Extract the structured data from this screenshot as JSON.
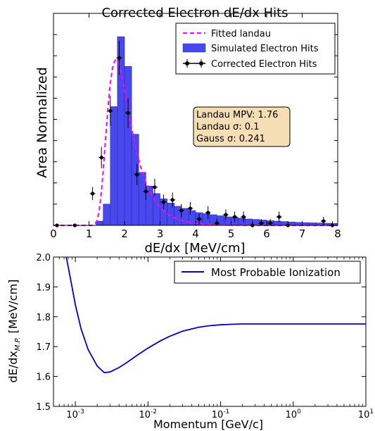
{
  "chart_data": [
    {
      "type": "bar",
      "title": "Corrected Electron dE/dx Hits",
      "xlabel": "dE/dx [MeV/cm]",
      "ylabel": "Area Normalized",
      "xlim": [
        0,
        8
      ],
      "xticks": [
        "0",
        "1",
        "2",
        "3",
        "4",
        "5",
        "6",
        "7",
        "8"
      ],
      "ylim": [
        0,
        1.0
      ],
      "y_tick_labels_shown": false,
      "grid": false,
      "legend": {
        "placement": "top-right",
        "entries": [
          "Fitted landau",
          "Simulated Electron Hits",
          "Corrected Electron Hits"
        ]
      },
      "series": [
        {
          "name": "Simulated Electron Hits",
          "kind": "histogram",
          "color": "#4848f0",
          "bin_width": 0.2,
          "bins": [
            {
              "x": 1.2,
              "value": 0.02
            },
            {
              "x": 1.4,
              "value": 0.1
            },
            {
              "x": 1.6,
              "value": 0.56
            },
            {
              "x": 1.8,
              "value": 0.89
            },
            {
              "x": 2.0,
              "value": 0.75
            },
            {
              "x": 2.2,
              "value": 0.43
            },
            {
              "x": 2.4,
              "value": 0.25
            },
            {
              "x": 2.6,
              "value": 0.185
            },
            {
              "x": 2.8,
              "value": 0.15
            },
            {
              "x": 3.0,
              "value": 0.125
            },
            {
              "x": 3.2,
              "value": 0.105
            },
            {
              "x": 3.4,
              "value": 0.09
            },
            {
              "x": 3.6,
              "value": 0.08
            },
            {
              "x": 3.8,
              "value": 0.07
            },
            {
              "x": 4.0,
              "value": 0.06
            },
            {
              "x": 4.2,
              "value": 0.055
            },
            {
              "x": 4.4,
              "value": 0.05
            },
            {
              "x": 4.6,
              "value": 0.045
            },
            {
              "x": 4.8,
              "value": 0.04
            },
            {
              "x": 5.0,
              "value": 0.037
            },
            {
              "x": 5.2,
              "value": 0.034
            },
            {
              "x": 5.4,
              "value": 0.03
            },
            {
              "x": 5.6,
              "value": 0.028
            },
            {
              "x": 5.8,
              "value": 0.025
            },
            {
              "x": 6.0,
              "value": 0.022
            },
            {
              "x": 6.2,
              "value": 0.02
            },
            {
              "x": 6.4,
              "value": 0.018
            },
            {
              "x": 6.6,
              "value": 0.016
            },
            {
              "x": 6.8,
              "value": 0.014
            },
            {
              "x": 7.0,
              "value": 0.013
            },
            {
              "x": 7.2,
              "value": 0.012
            },
            {
              "x": 7.4,
              "value": 0.011
            },
            {
              "x": 7.6,
              "value": 0.01
            },
            {
              "x": 7.8,
              "value": 0.009
            }
          ]
        },
        {
          "name": "Corrected Electron Hits",
          "kind": "errorbar",
          "color": "#000000",
          "points": [
            {
              "x": 0.1,
              "y": 0.0,
              "err": 0.0
            },
            {
              "x": 0.6,
              "y": 0.0,
              "err": 0.0
            },
            {
              "x": 1.1,
              "y": 0.15,
              "err": 0.03
            },
            {
              "x": 1.35,
              "y": 0.32,
              "err": 0.05
            },
            {
              "x": 1.6,
              "y": 0.54,
              "err": 0.07
            },
            {
              "x": 1.85,
              "y": 0.79,
              "err": 0.08
            },
            {
              "x": 2.1,
              "y": 0.53,
              "err": 0.07
            },
            {
              "x": 2.35,
              "y": 0.24,
              "err": 0.05
            },
            {
              "x": 2.6,
              "y": 0.16,
              "err": 0.04
            },
            {
              "x": 2.85,
              "y": 0.18,
              "err": 0.04
            },
            {
              "x": 3.1,
              "y": 0.11,
              "err": 0.035
            },
            {
              "x": 3.35,
              "y": 0.12,
              "err": 0.035
            },
            {
              "x": 3.6,
              "y": 0.07,
              "err": 0.03
            },
            {
              "x": 3.85,
              "y": 0.08,
              "err": 0.03
            },
            {
              "x": 4.1,
              "y": 0.03,
              "err": 0.025
            },
            {
              "x": 4.35,
              "y": 0.06,
              "err": 0.03
            },
            {
              "x": 4.6,
              "y": 0.01,
              "err": 0.02
            },
            {
              "x": 4.85,
              "y": 0.05,
              "err": 0.025
            },
            {
              "x": 5.1,
              "y": 0.04,
              "err": 0.025
            },
            {
              "x": 5.35,
              "y": 0.04,
              "err": 0.025
            },
            {
              "x": 5.6,
              "y": 0.0,
              "err": 0.02
            },
            {
              "x": 5.85,
              "y": 0.01,
              "err": 0.02
            },
            {
              "x": 6.1,
              "y": 0.01,
              "err": 0.02
            },
            {
              "x": 6.35,
              "y": 0.04,
              "err": 0.025
            },
            {
              "x": 6.6,
              "y": 0.0,
              "err": 0.02
            },
            {
              "x": 7.6,
              "y": 0.02,
              "err": 0.02
            },
            {
              "x": 7.85,
              "y": 0.0,
              "err": 0.02
            }
          ]
        },
        {
          "name": "Fitted landau",
          "kind": "landau-curve",
          "color": "#ff00ff",
          "style": "dashed",
          "mpv": 1.76,
          "sigma": 0.1,
          "gauss_sigma": 0.241,
          "peak": 0.78
        }
      ],
      "annotation": {
        "lines": [
          "Landau MPV: 1.76",
          "Landau σ: 0.1",
          "Gauss σ: 0.241"
        ],
        "color": "#f5deb3"
      }
    },
    {
      "type": "line",
      "xlabel": "Momentum [GeV/c]",
      "ylabel": "dE/dx",
      "ylabel_subscript": "M.P.",
      "ylabel_units": "[MeV/cm]",
      "x_scale": "log",
      "xlim": [
        0.0005,
        10
      ],
      "x_tick_labels": [
        {
          "value": 0.001,
          "base": "10",
          "exp": "-3"
        },
        {
          "value": 0.01,
          "base": "10",
          "exp": "-2"
        },
        {
          "value": 0.1,
          "base": "10",
          "exp": "-1"
        },
        {
          "value": 1,
          "base": "10",
          "exp": "0"
        },
        {
          "value": 10,
          "base": "10",
          "exp": "1"
        }
      ],
      "ylim": [
        1.5,
        2.0
      ],
      "y_tick_labels": [
        "1.5",
        "1.6",
        "1.7",
        "1.8",
        "1.9",
        "2.0"
      ],
      "grid": false,
      "legend": {
        "placement": "top-right",
        "entries": [
          "Most Probable Ionization"
        ]
      },
      "series": [
        {
          "name": "Most Probable Ionization",
          "color": "#0000cc",
          "x": [
            0.00075,
            0.0008,
            0.0009,
            0.001,
            0.0012,
            0.0015,
            0.002,
            0.0025,
            0.003,
            0.004,
            0.005,
            0.007,
            0.01,
            0.015,
            0.02,
            0.03,
            0.05,
            0.07,
            0.1,
            0.15,
            0.2,
            0.3,
            0.5,
            1,
            2,
            5,
            10
          ],
          "y": [
            2.0,
            1.965,
            1.9,
            1.84,
            1.76,
            1.69,
            1.635,
            1.613,
            1.615,
            1.63,
            1.645,
            1.67,
            1.695,
            1.72,
            1.735,
            1.752,
            1.765,
            1.77,
            1.773,
            1.775,
            1.776,
            1.776,
            1.776,
            1.776,
            1.776,
            1.776,
            1.776
          ]
        }
      ]
    }
  ]
}
